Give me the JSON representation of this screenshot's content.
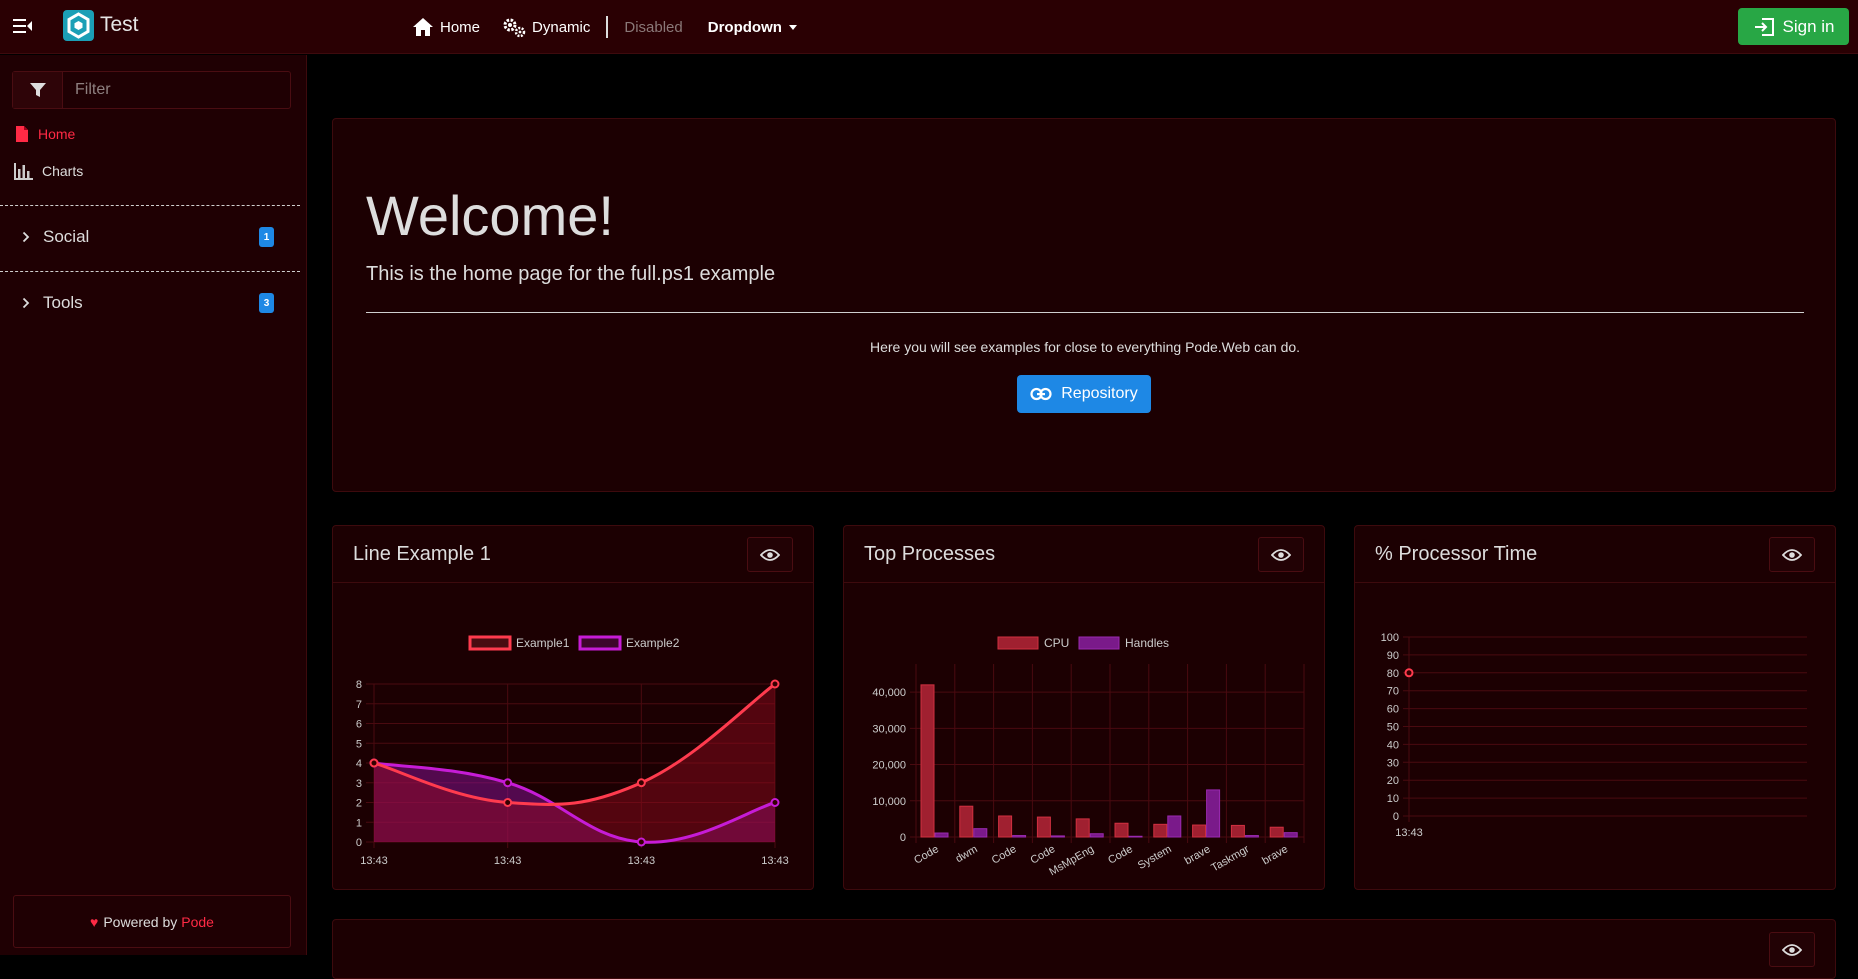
{
  "app": {
    "title": "Test"
  },
  "nav": {
    "home": "Home",
    "dynamic": "Dynamic",
    "disabled": "Disabled",
    "dropdown": "Dropdown",
    "signin": "Sign in"
  },
  "sidebar": {
    "filter_placeholder": "Filter",
    "links": [
      {
        "label": "Home"
      },
      {
        "label": "Charts"
      }
    ],
    "groups": [
      {
        "label": "Social",
        "badge": "1"
      },
      {
        "label": "Tools",
        "badge": "3"
      }
    ],
    "powered_prefix": "Powered by",
    "powered_link": "Pode"
  },
  "hero": {
    "title": "Welcome!",
    "subtitle": "This is the home page for the full.ps1 example",
    "text": "Here you will see examples for close to everything Pode.Web can do.",
    "button": "Repository"
  },
  "colors": {
    "accent": "#ff2a45",
    "primary": "#1e88e5",
    "success": "#28a745",
    "series_red": "#ff3b4e",
    "series_purple": "#c61cd6"
  },
  "cards": [
    {
      "title": "Line Example 1"
    },
    {
      "title": "Top Processes"
    },
    {
      "title": "% Processor Time"
    }
  ],
  "chart_data": [
    {
      "type": "line",
      "x": [
        "13:43",
        "13:43",
        "13:43",
        "13:43"
      ],
      "series": [
        {
          "name": "Example1",
          "values": [
            4,
            2,
            3,
            8
          ]
        },
        {
          "name": "Example2",
          "values": [
            4,
            3,
            0,
            2
          ]
        }
      ],
      "yticks": [
        "0",
        "1",
        "2",
        "3",
        "4",
        "5",
        "6",
        "7",
        "8"
      ],
      "ylim": [
        0,
        8
      ],
      "grid": true,
      "legend": "top"
    },
    {
      "type": "bar",
      "categories": [
        "Code",
        "dwm",
        "Code",
        "Code",
        "MsMpEng",
        "Code",
        "System",
        "brave",
        "Taskmgr",
        "brave"
      ],
      "series": [
        {
          "name": "CPU",
          "values": [
            42000,
            8500,
            5800,
            5500,
            5000,
            3800,
            3500,
            3300,
            3200,
            2700
          ]
        },
        {
          "name": "Handles",
          "values": [
            1100,
            2300,
            400,
            300,
            900,
            200,
            5800,
            13000,
            400,
            1200
          ]
        }
      ],
      "yticks": [
        "0",
        "10,000",
        "20,000",
        "30,000",
        "40,000"
      ],
      "ylim": [
        0,
        45000
      ],
      "grid": true,
      "legend": "top"
    },
    {
      "type": "line",
      "x": [
        "13:43"
      ],
      "series": [
        {
          "values": [
            80
          ]
        }
      ],
      "yticks": [
        "0",
        "10",
        "20",
        "30",
        "40",
        "50",
        "60",
        "70",
        "80",
        "90",
        "100"
      ],
      "ylim": [
        0,
        100
      ],
      "grid": true
    }
  ]
}
